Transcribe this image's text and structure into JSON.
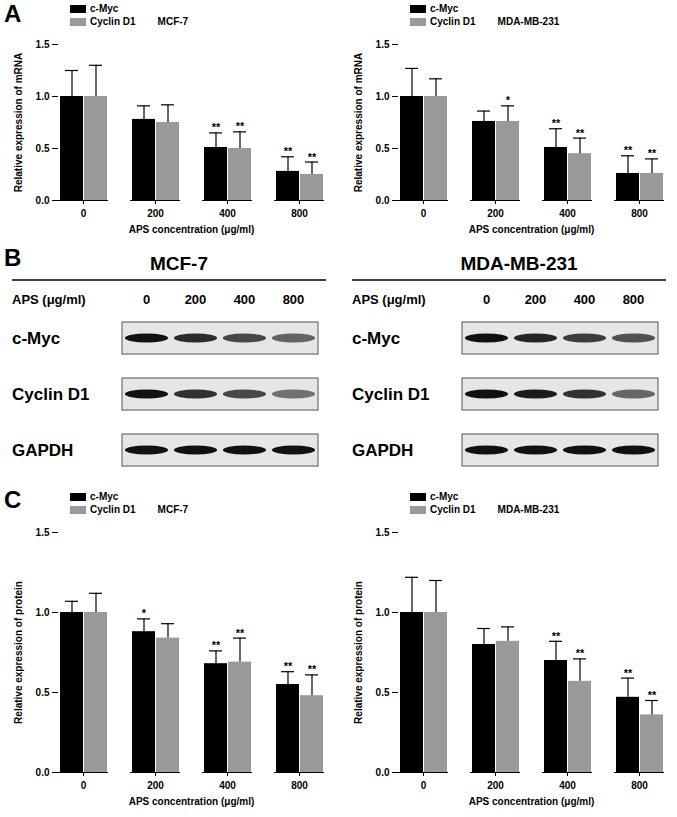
{
  "chart_data": [
    {
      "type": "bar",
      "annotation": "MCF-7",
      "legend": "top-left",
      "x_label": "APS concentration (μg/ml)",
      "y_label": "Relative expression of mRNA",
      "categories": [
        "0",
        "200",
        "400",
        "800"
      ],
      "ylim": [
        0,
        1.5
      ],
      "yticks": [
        {
          "value": 0,
          "label": "0.0"
        },
        {
          "value": 0.5,
          "label": "0.5"
        },
        {
          "value": 1,
          "label": "1.0"
        },
        {
          "value": 1.5,
          "label": "1.5"
        }
      ],
      "series": [
        {
          "name": "c-Myc",
          "color": "#000000",
          "values": [
            1.0,
            0.78,
            0.51,
            0.28
          ],
          "errors": [
            0.25,
            0.13,
            0.14,
            0.14
          ],
          "significance": [
            null,
            null,
            "**",
            "**"
          ]
        },
        {
          "name": "Cyclin D1",
          "color": "#999999",
          "values": [
            1.0,
            0.75,
            0.5,
            0.25
          ],
          "errors": [
            0.3,
            0.17,
            0.16,
            0.12
          ],
          "significance": [
            null,
            null,
            "**",
            "**"
          ]
        }
      ]
    },
    {
      "type": "bar",
      "annotation": "MDA-MB-231",
      "legend": "top-left",
      "x_label": "APS concentration (μg/ml)",
      "y_label": "Relative expression of mRNA",
      "categories": [
        "0",
        "200",
        "400",
        "800"
      ],
      "ylim": [
        0,
        1.5
      ],
      "yticks": [
        {
          "value": 0,
          "label": "0.0"
        },
        {
          "value": 0.5,
          "label": "0.5"
        },
        {
          "value": 1,
          "label": "1.0"
        },
        {
          "value": 1.5,
          "label": "1.5"
        }
      ],
      "series": [
        {
          "name": "c-Myc",
          "color": "#000000",
          "values": [
            1.0,
            0.76,
            0.51,
            0.26
          ],
          "errors": [
            0.27,
            0.1,
            0.18,
            0.17
          ],
          "significance": [
            null,
            null,
            "**",
            "**"
          ]
        },
        {
          "name": "Cyclin D1",
          "color": "#999999",
          "values": [
            1.0,
            0.76,
            0.45,
            0.26
          ],
          "errors": [
            0.17,
            0.15,
            0.15,
            0.14
          ],
          "significance": [
            null,
            "*",
            "**",
            "**"
          ]
        }
      ]
    },
    {
      "type": "bar",
      "annotation": "MCF-7",
      "legend": "top-left",
      "x_label": "APS concentration (μg/ml)",
      "y_label": "Relative expression of protein",
      "categories": [
        "0",
        "200",
        "400",
        "800"
      ],
      "ylim": [
        0,
        1.5
      ],
      "yticks": [
        {
          "value": 0,
          "label": "0.0"
        },
        {
          "value": 0.5,
          "label": "0.5"
        },
        {
          "value": 1,
          "label": "1.0"
        },
        {
          "value": 1.5,
          "label": "1.5"
        }
      ],
      "series": [
        {
          "name": "c-Myc",
          "color": "#000000",
          "values": [
            1.0,
            0.88,
            0.68,
            0.55
          ],
          "errors": [
            0.07,
            0.08,
            0.08,
            0.08
          ],
          "significance": [
            null,
            "*",
            "**",
            "**"
          ]
        },
        {
          "name": "Cyclin D1",
          "color": "#999999",
          "values": [
            1.0,
            0.84,
            0.69,
            0.48
          ],
          "errors": [
            0.12,
            0.09,
            0.15,
            0.13
          ],
          "significance": [
            null,
            null,
            "**",
            "**"
          ]
        }
      ]
    },
    {
      "type": "bar",
      "annotation": "MDA-MB-231",
      "legend": "top-left",
      "x_label": "APS concentration (μg/ml)",
      "y_label": "Relative expression of protein",
      "categories": [
        "0",
        "200",
        "400",
        "800"
      ],
      "ylim": [
        0,
        1.5
      ],
      "yticks": [
        {
          "value": 0,
          "label": "0.0"
        },
        {
          "value": 0.5,
          "label": "0.5"
        },
        {
          "value": 1,
          "label": "1.0"
        },
        {
          "value": 1.5,
          "label": "1.5"
        }
      ],
      "series": [
        {
          "name": "c-Myc",
          "color": "#000000",
          "values": [
            1.0,
            0.8,
            0.7,
            0.47
          ],
          "errors": [
            0.22,
            0.1,
            0.12,
            0.12
          ],
          "significance": [
            null,
            null,
            "**",
            "**"
          ]
        },
        {
          "name": "Cyclin D1",
          "color": "#999999",
          "values": [
            1.0,
            0.82,
            0.57,
            0.36
          ],
          "errors": [
            0.2,
            0.09,
            0.14,
            0.09
          ],
          "significance": [
            null,
            null,
            "**",
            "**"
          ]
        }
      ]
    }
  ],
  "panel_labels": [
    "A",
    "B",
    "C"
  ],
  "western_blot": {
    "row_header": "APS (μg/ml)",
    "lanes": [
      "0",
      "200",
      "400",
      "800"
    ],
    "panels": [
      {
        "cell_line": "MCF-7",
        "bands": [
          {
            "protein": "c-Myc",
            "intensity": [
              1.0,
              0.88,
              0.75,
              0.62
            ]
          },
          {
            "protein": "Cyclin D1",
            "intensity": [
              1.0,
              0.85,
              0.75,
              0.55
            ]
          },
          {
            "protein": "GAPDH",
            "intensity": [
              1.0,
              1.0,
              1.0,
              1.0
            ]
          }
        ]
      },
      {
        "cell_line": "MDA-MB-231",
        "bands": [
          {
            "protein": "c-Myc",
            "intensity": [
              1.0,
              0.9,
              0.8,
              0.7
            ]
          },
          {
            "protein": "Cyclin D1",
            "intensity": [
              1.0,
              0.95,
              0.85,
              0.6
            ]
          },
          {
            "protein": "GAPDH",
            "intensity": [
              1.0,
              1.0,
              1.0,
              1.0
            ]
          }
        ]
      }
    ]
  }
}
